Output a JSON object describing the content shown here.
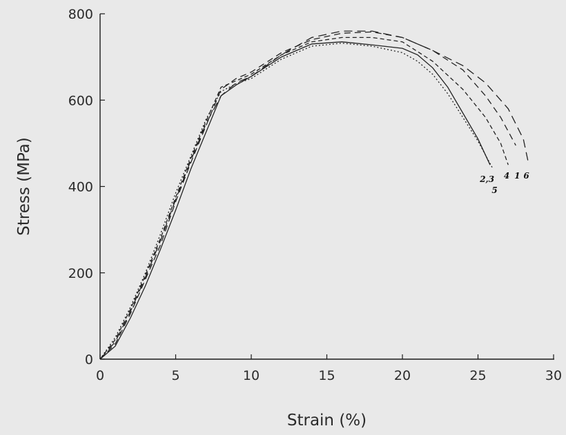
{
  "chart_data": {
    "type": "line",
    "title": "",
    "xlabel": "Strain (%)",
    "ylabel": "Stress (MPa)",
    "xlim": [
      0,
      30
    ],
    "ylim": [
      0,
      800
    ],
    "xticks": [
      0,
      5,
      10,
      15,
      20,
      25,
      30
    ],
    "yticks": [
      0,
      200,
      400,
      600,
      800
    ],
    "grid": false,
    "legend": "none",
    "series": [
      {
        "curve_id": "1",
        "dash": "9,6",
        "points": [
          [
            0,
            0
          ],
          [
            1,
            35
          ],
          [
            2,
            105
          ],
          [
            3,
            185
          ],
          [
            4,
            265
          ],
          [
            5,
            365
          ],
          [
            6,
            455
          ],
          [
            7,
            540
          ],
          [
            8,
            625
          ],
          [
            9,
            650
          ],
          [
            10,
            665
          ],
          [
            12,
            710
          ],
          [
            14,
            740
          ],
          [
            16,
            755
          ],
          [
            18,
            758
          ],
          [
            20,
            745
          ],
          [
            22,
            715
          ],
          [
            24,
            670
          ],
          [
            25.5,
            610
          ],
          [
            26.5,
            560
          ],
          [
            27.5,
            495
          ]
        ]
      },
      {
        "curve_id": "2,3",
        "dash": "",
        "points": [
          [
            0,
            0
          ],
          [
            1,
            30
          ],
          [
            2,
            95
          ],
          [
            3,
            170
          ],
          [
            4,
            255
          ],
          [
            5,
            345
          ],
          [
            6,
            440
          ],
          [
            7,
            525
          ],
          [
            8,
            610
          ],
          [
            9,
            635
          ],
          [
            10,
            655
          ],
          [
            12,
            700
          ],
          [
            14,
            730
          ],
          [
            16,
            735
          ],
          [
            18,
            728
          ],
          [
            20,
            720
          ],
          [
            21,
            705
          ],
          [
            22,
            675
          ],
          [
            23,
            630
          ],
          [
            24,
            570
          ],
          [
            25,
            510
          ],
          [
            25.8,
            450
          ]
        ]
      },
      {
        "curve_id": "4",
        "dash": "6,4",
        "points": [
          [
            0,
            0
          ],
          [
            1,
            45
          ],
          [
            2,
            115
          ],
          [
            3,
            195
          ],
          [
            4,
            280
          ],
          [
            5,
            375
          ],
          [
            6,
            465
          ],
          [
            7,
            550
          ],
          [
            8,
            630
          ],
          [
            9,
            645
          ],
          [
            10,
            660
          ],
          [
            12,
            705
          ],
          [
            14,
            735
          ],
          [
            16,
            745
          ],
          [
            18,
            745
          ],
          [
            20,
            735
          ],
          [
            22,
            690
          ],
          [
            24,
            625
          ],
          [
            25.5,
            560
          ],
          [
            26.5,
            500
          ],
          [
            27,
            450
          ]
        ]
      },
      {
        "curve_id": "5",
        "dash": "2,3",
        "points": [
          [
            0,
            0
          ],
          [
            1,
            50
          ],
          [
            2,
            120
          ],
          [
            3,
            200
          ],
          [
            4,
            290
          ],
          [
            5,
            385
          ],
          [
            6,
            470
          ],
          [
            7,
            555
          ],
          [
            8,
            620
          ],
          [
            9,
            638
          ],
          [
            10,
            650
          ],
          [
            12,
            695
          ],
          [
            14,
            725
          ],
          [
            16,
            732
          ],
          [
            18,
            725
          ],
          [
            20,
            710
          ],
          [
            21,
            690
          ],
          [
            22,
            660
          ],
          [
            23,
            615
          ],
          [
            24,
            560
          ],
          [
            25,
            505
          ],
          [
            26,
            440
          ]
        ]
      },
      {
        "curve_id": "6",
        "dash": "12,7",
        "points": [
          [
            0,
            0
          ],
          [
            1,
            40
          ],
          [
            2,
            110
          ],
          [
            3,
            190
          ],
          [
            4,
            275
          ],
          [
            5,
            370
          ],
          [
            6,
            460
          ],
          [
            7,
            545
          ],
          [
            8,
            610
          ],
          [
            9,
            640
          ],
          [
            10,
            655
          ],
          [
            12,
            705
          ],
          [
            14,
            745
          ],
          [
            16,
            760
          ],
          [
            18,
            760
          ],
          [
            20,
            745
          ],
          [
            22,
            715
          ],
          [
            24,
            680
          ],
          [
            25.5,
            640
          ],
          [
            27,
            580
          ],
          [
            28,
            510
          ],
          [
            28.3,
            460
          ]
        ]
      }
    ],
    "annotations": [
      {
        "text": "2,3",
        "x": 25.6,
        "y": 410
      },
      {
        "text": "5",
        "x": 26.1,
        "y": 385
      },
      {
        "text": "4",
        "x": 26.9,
        "y": 418
      },
      {
        "text": "1",
        "x": 27.6,
        "y": 418
      },
      {
        "text": "6",
        "x": 28.2,
        "y": 418
      }
    ]
  }
}
